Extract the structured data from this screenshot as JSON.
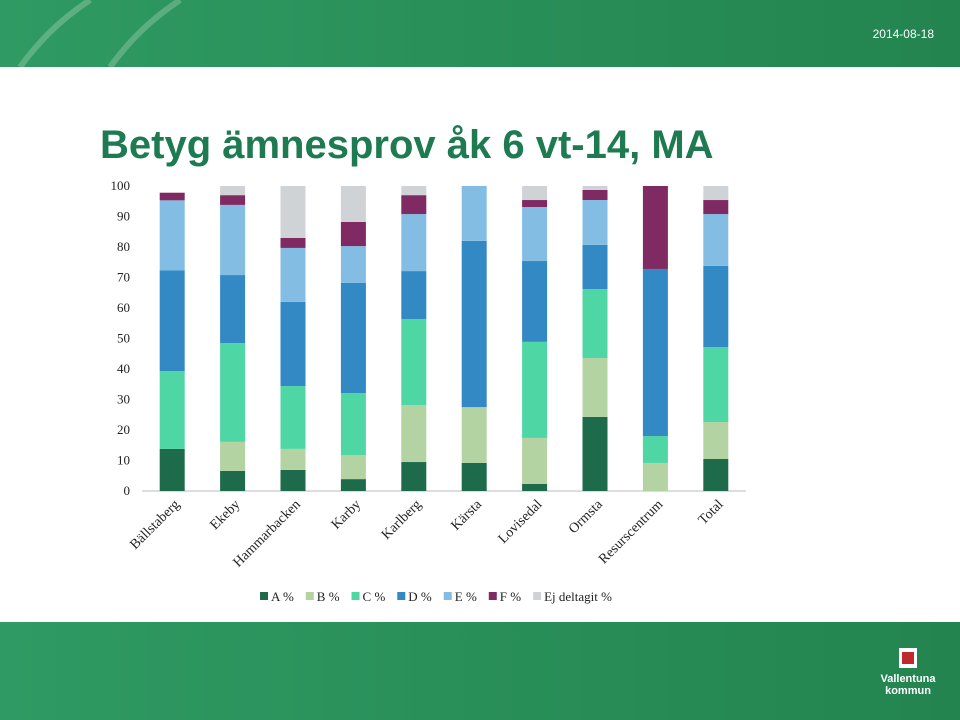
{
  "date": "2014-08-18",
  "logo_lines": [
    "Vallentuna",
    "kommun"
  ],
  "chart_data": {
    "type": "stacked_bar",
    "title": "Betyg ämnesprov åk 6 vt-14, MA",
    "categories": [
      "Bällstaberg",
      "Ekeby",
      "Hammarbacken",
      "Karby",
      "Karlberg",
      "Kärsta",
      "Lovisedal",
      "Ormsta",
      "Resurscentrum",
      "Total"
    ],
    "series": [
      {
        "name": "A %",
        "color": "#1d6b4a",
        "values": [
          13.8,
          6.6,
          6.9,
          3.9,
          9.5,
          9.2,
          2.3,
          24.3,
          0,
          10.5
        ]
      },
      {
        "name": "B %",
        "color": "#b3d3a3",
        "values": [
          0,
          9.5,
          6.9,
          7.9,
          18.7,
          18.3,
          15.1,
          19.3,
          9.2,
          12.1
        ]
      },
      {
        "name": "C %",
        "color": "#4fd6a5",
        "values": [
          25.5,
          32.4,
          20.6,
          20.3,
          28.2,
          0,
          31.5,
          22.6,
          8.8,
          24.6
        ]
      },
      {
        "name": "D %",
        "color": "#3389c3",
        "values": [
          33,
          22.3,
          27.6,
          36.1,
          15.7,
          54.5,
          26.5,
          14.5,
          54.8,
          26.6
        ]
      },
      {
        "name": "E %",
        "color": "#84bde4",
        "values": [
          23,
          23,
          17.7,
          12.1,
          18.7,
          18,
          17.7,
          14.7,
          0,
          17
        ]
      },
      {
        "name": "F %",
        "color": "#7f2a63",
        "values": [
          2.5,
          3.2,
          3.3,
          7.9,
          6.2,
          0,
          2.3,
          3.3,
          27.2,
          4.6
        ]
      },
      {
        "name": "Ej deltagit %",
        "color": "#cfd3d6",
        "values": [
          0,
          3,
          17,
          11.8,
          3,
          0,
          4.6,
          1.3,
          0,
          4.6
        ]
      }
    ],
    "ylim": [
      0,
      100
    ],
    "yticks": [
      0,
      10,
      20,
      30,
      40,
      50,
      60,
      70,
      80,
      90,
      100
    ],
    "grid": false
  }
}
